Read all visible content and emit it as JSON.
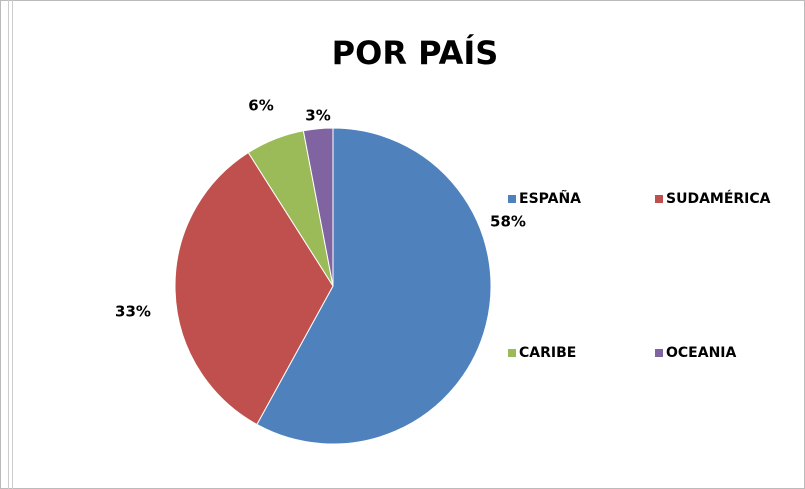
{
  "chart_data": {
    "type": "pie",
    "title": "POR PAÍS",
    "categories": [
      "ESPAÑA",
      "SUDAMÉRICA",
      "CARIBE",
      "OCEANIA"
    ],
    "values": [
      58,
      33,
      6,
      3
    ],
    "value_labels": [
      "58%",
      "33%",
      "6%",
      "3%"
    ],
    "colors": [
      "#4f81bd",
      "#c0504d",
      "#9bbb59",
      "#8064a2"
    ],
    "legend": "right"
  }
}
